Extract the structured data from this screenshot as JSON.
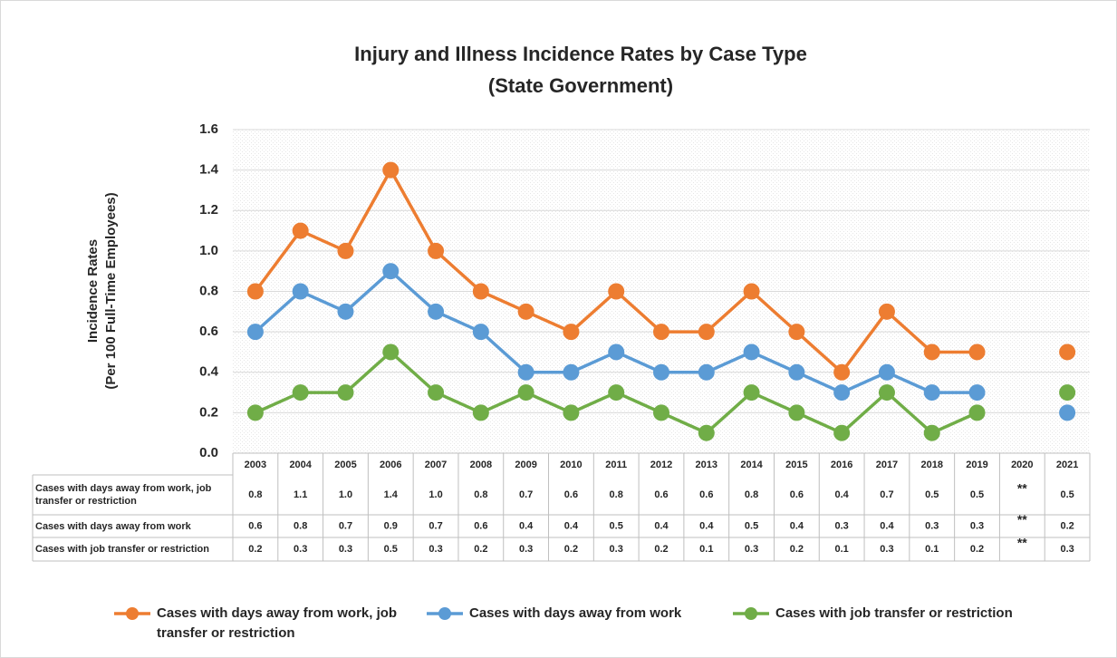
{
  "chart_data": {
    "type": "line",
    "title": "Injury and Illness Incidence Rates by Case Type",
    "subtitle": "(State Government)",
    "y_label": "Incidence Rates",
    "y_label_sub": "(Per 100 Full-Time Employees)",
    "categories": [
      "2003",
      "2004",
      "2005",
      "2006",
      "2007",
      "2008",
      "2009",
      "2010",
      "2011",
      "2012",
      "2013",
      "2014",
      "2015",
      "2016",
      "2017",
      "2018",
      "2019",
      "2020",
      "2021"
    ],
    "series": [
      {
        "name": "Cases with days away from work, job transfer or restriction",
        "color": "#ed7d31",
        "values": [
          0.8,
          1.1,
          1.0,
          1.4,
          1.0,
          0.8,
          0.7,
          0.6,
          0.8,
          0.6,
          0.6,
          0.8,
          0.6,
          0.4,
          0.7,
          0.5,
          0.5,
          null,
          0.5
        ],
        "value_labels": [
          "0.8",
          "1.1",
          "1.0",
          "1.4",
          "1.0",
          "0.8",
          "0.7",
          "0.6",
          "0.8",
          "0.6",
          "0.6",
          "0.8",
          "0.6",
          "0.4",
          "0.7",
          "0.5",
          "0.5",
          "**",
          "0.5"
        ]
      },
      {
        "name": "Cases with days away from work",
        "color": "#5b9bd5",
        "values": [
          0.6,
          0.8,
          0.7,
          0.9,
          0.7,
          0.6,
          0.4,
          0.4,
          0.5,
          0.4,
          0.4,
          0.5,
          0.4,
          0.3,
          0.4,
          0.3,
          0.3,
          null,
          0.2
        ],
        "value_labels": [
          "0.6",
          "0.8",
          "0.7",
          "0.9",
          "0.7",
          "0.6",
          "0.4",
          "0.4",
          "0.5",
          "0.4",
          "0.4",
          "0.5",
          "0.4",
          "0.3",
          "0.4",
          "0.3",
          "0.3",
          "**",
          "0.2"
        ]
      },
      {
        "name": "Cases with job transfer or restriction",
        "color": "#70ad47",
        "values": [
          0.2,
          0.3,
          0.3,
          0.5,
          0.3,
          0.2,
          0.3,
          0.2,
          0.3,
          0.2,
          0.1,
          0.3,
          0.2,
          0.1,
          0.3,
          0.1,
          0.2,
          null,
          0.3
        ],
        "value_labels": [
          "0.2",
          "0.3",
          "0.3",
          "0.5",
          "0.3",
          "0.2",
          "0.3",
          "0.2",
          "0.3",
          "0.2",
          "0.1",
          "0.3",
          "0.2",
          "0.1",
          "0.3",
          "0.1",
          "0.2",
          "**",
          "0.3"
        ]
      }
    ],
    "ylim": [
      0,
      1.6
    ],
    "yticks": [
      {
        "value": 0,
        "label": "0.0"
      },
      0.2,
      0.4,
      0.6,
      0.8,
      {
        "value": 1,
        "label": "1.0"
      },
      1.2,
      1.4,
      1.6
    ],
    "grid": true,
    "legend": "bottom"
  }
}
